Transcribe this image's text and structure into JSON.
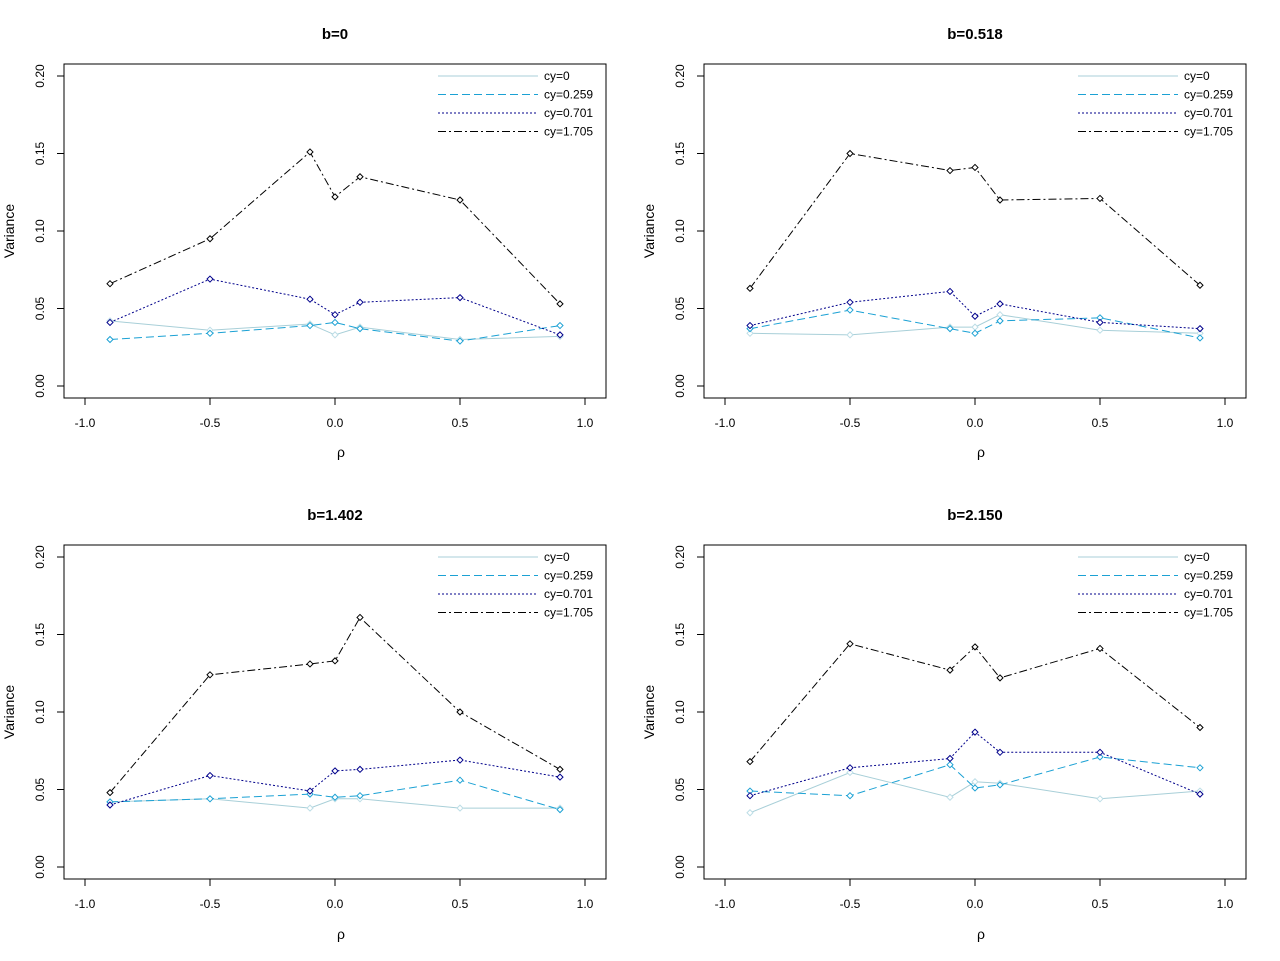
{
  "chart_data": [
    {
      "type": "line",
      "title": "b=0",
      "xlabel": "ρ",
      "ylabel": "Variance",
      "x": [
        -0.9,
        -0.5,
        -0.1,
        0.0,
        0.1,
        0.5,
        0.9
      ],
      "xlim": [
        -1.0,
        1.0
      ],
      "ylim": [
        0.0,
        0.2
      ],
      "xticks": [
        "-1.0",
        "-0.5",
        "0.0",
        "0.5",
        "1.0"
      ],
      "yticks": [
        "0.00",
        "0.05",
        "0.10",
        "0.15",
        "0.20"
      ],
      "legend_position": "top-right",
      "grid": false,
      "series": [
        {
          "name": "cy=0",
          "values": [
            0.042,
            0.036,
            0.04,
            0.033,
            0.038,
            0.03,
            0.032
          ]
        },
        {
          "name": "cy=0.259",
          "values": [
            0.03,
            0.034,
            0.039,
            0.041,
            0.037,
            0.029,
            0.039
          ]
        },
        {
          "name": "cy=0.701",
          "values": [
            0.041,
            0.069,
            0.056,
            0.046,
            0.054,
            0.057,
            0.033
          ]
        },
        {
          "name": "cy=1.705",
          "values": [
            0.066,
            0.095,
            0.151,
            0.122,
            0.135,
            0.12,
            0.053
          ]
        }
      ]
    },
    {
      "type": "line",
      "title": "b=0.518",
      "xlabel": "ρ",
      "ylabel": "Variance",
      "x": [
        -0.9,
        -0.5,
        -0.1,
        0.0,
        0.1,
        0.5,
        0.9
      ],
      "xlim": [
        -1.0,
        1.0
      ],
      "ylim": [
        0.0,
        0.2
      ],
      "xticks": [
        "-1.0",
        "-0.5",
        "0.0",
        "0.5",
        "1.0"
      ],
      "yticks": [
        "0.00",
        "0.05",
        "0.10",
        "0.15",
        "0.20"
      ],
      "legend_position": "top-right",
      "grid": false,
      "series": [
        {
          "name": "cy=0",
          "values": [
            0.034,
            0.033,
            0.038,
            0.038,
            0.046,
            0.036,
            0.034
          ]
        },
        {
          "name": "cy=0.259",
          "values": [
            0.037,
            0.049,
            0.037,
            0.034,
            0.042,
            0.044,
            0.031
          ]
        },
        {
          "name": "cy=0.701",
          "values": [
            0.039,
            0.054,
            0.061,
            0.045,
            0.053,
            0.041,
            0.037
          ]
        },
        {
          "name": "cy=1.705",
          "values": [
            0.063,
            0.15,
            0.139,
            0.141,
            0.12,
            0.121,
            0.065
          ]
        }
      ]
    },
    {
      "type": "line",
      "title": "b=1.402",
      "xlabel": "ρ",
      "ylabel": "Variance",
      "x": [
        -0.9,
        -0.5,
        -0.1,
        0.0,
        0.1,
        0.5,
        0.9
      ],
      "xlim": [
        -1.0,
        1.0
      ],
      "ylim": [
        0.0,
        0.2
      ],
      "xticks": [
        "-1.0",
        "-0.5",
        "0.0",
        "0.5",
        "1.0"
      ],
      "yticks": [
        "0.00",
        "0.05",
        "0.10",
        "0.15",
        "0.20"
      ],
      "legend_position": "top-right",
      "grid": false,
      "series": [
        {
          "name": "cy=0",
          "values": [
            0.042,
            0.044,
            0.038,
            0.044,
            0.044,
            0.038,
            0.038
          ]
        },
        {
          "name": "cy=0.259",
          "values": [
            0.042,
            0.044,
            0.047,
            0.045,
            0.046,
            0.056,
            0.037
          ]
        },
        {
          "name": "cy=0.701",
          "values": [
            0.04,
            0.059,
            0.049,
            0.062,
            0.063,
            0.069,
            0.058
          ]
        },
        {
          "name": "cy=1.705",
          "values": [
            0.048,
            0.124,
            0.131,
            0.133,
            0.161,
            0.1,
            0.063
          ]
        }
      ]
    },
    {
      "type": "line",
      "title": "b=2.150",
      "xlabel": "ρ",
      "ylabel": "Variance",
      "x": [
        -0.9,
        -0.5,
        -0.1,
        0.0,
        0.1,
        0.5,
        0.9
      ],
      "xlim": [
        -1.0,
        1.0
      ],
      "ylim": [
        0.0,
        0.2
      ],
      "xticks": [
        "-1.0",
        "-0.5",
        "0.0",
        "0.5",
        "1.0"
      ],
      "yticks": [
        "0.00",
        "0.05",
        "0.10",
        "0.15",
        "0.20"
      ],
      "legend_position": "top-right",
      "grid": false,
      "series": [
        {
          "name": "cy=0",
          "values": [
            0.035,
            0.061,
            0.045,
            0.055,
            0.054,
            0.044,
            0.049
          ]
        },
        {
          "name": "cy=0.259",
          "values": [
            0.049,
            0.046,
            0.066,
            0.051,
            0.053,
            0.071,
            0.064
          ]
        },
        {
          "name": "cy=0.701",
          "values": [
            0.046,
            0.064,
            0.07,
            0.087,
            0.074,
            0.074,
            0.047
          ]
        },
        {
          "name": "cy=1.705",
          "values": [
            0.068,
            0.144,
            0.127,
            0.142,
            0.122,
            0.141,
            0.09
          ]
        }
      ]
    }
  ],
  "style": {
    "series_colors": [
      "#a8cfd8",
      "#1ba1d4",
      "#00008b",
      "#000000"
    ],
    "series_dash": [
      "",
      "8,4",
      "2,2",
      "8,3,2,3"
    ],
    "marker_colors": [
      "#bcdde6",
      "#1ba1d4",
      "#00008b",
      "#000000"
    ]
  }
}
